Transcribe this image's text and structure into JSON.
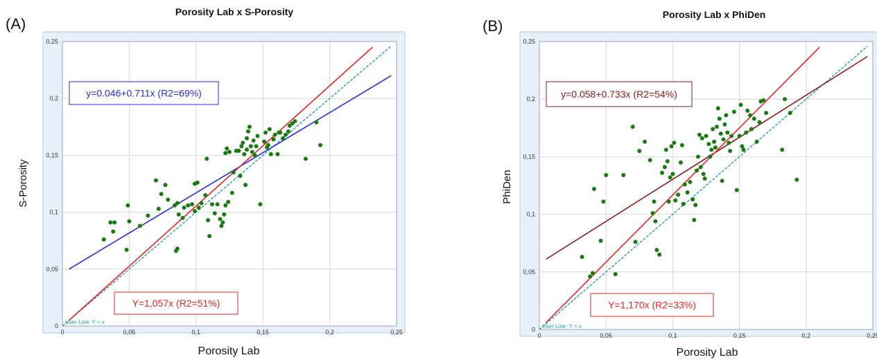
{
  "chart_data": [
    {
      "type": "scatter",
      "panel_label": "(A)",
      "title": "Porosity Lab  x S-Porosity",
      "xlabel": "Porosity Lab",
      "ylabel": "S-Porosity",
      "xlim": [
        0,
        0.25
      ],
      "ylim": [
        0,
        0.25
      ],
      "x_ticks": [
        "0",
        "0,05",
        "0,1",
        "0,15",
        "0,2",
        "0,25"
      ],
      "y_ticks": [
        "0",
        "0,05",
        "0,1",
        "0,15",
        "0,2",
        "0,25"
      ],
      "grid": true,
      "colors": {
        "points": "#1a7a12",
        "fit": "#2a2ae0",
        "origin_fit": "#ee2222",
        "user_line": "#1a9a9a",
        "background": "#e7f0f8"
      },
      "points": [
        [
          0.031,
          0.076
        ],
        [
          0.036,
          0.091
        ],
        [
          0.038,
          0.083
        ],
        [
          0.039,
          0.091
        ],
        [
          0.048,
          0.067
        ],
        [
          0.049,
          0.106
        ],
        [
          0.05,
          0.092
        ],
        [
          0.058,
          0.088
        ],
        [
          0.064,
          0.097
        ],
        [
          0.07,
          0.128
        ],
        [
          0.072,
          0.103
        ],
        [
          0.074,
          0.116
        ],
        [
          0.077,
          0.124
        ],
        [
          0.079,
          0.111
        ],
        [
          0.084,
          0.106
        ],
        [
          0.085,
          0.066
        ],
        [
          0.086,
          0.068
        ],
        [
          0.086,
          0.108
        ],
        [
          0.087,
          0.098
        ],
        [
          0.09,
          0.095
        ],
        [
          0.091,
          0.104
        ],
        [
          0.094,
          0.106
        ],
        [
          0.097,
          0.107
        ],
        [
          0.099,
          0.101
        ],
        [
          0.099,
          0.125
        ],
        [
          0.101,
          0.126
        ],
        [
          0.102,
          0.104
        ],
        [
          0.104,
          0.108
        ],
        [
          0.107,
          0.115
        ],
        [
          0.108,
          0.147
        ],
        [
          0.109,
          0.093
        ],
        [
          0.11,
          0.079
        ],
        [
          0.112,
          0.107
        ],
        [
          0.114,
          0.099
        ],
        [
          0.116,
          0.107
        ],
        [
          0.118,
          0.094
        ],
        [
          0.119,
          0.088
        ],
        [
          0.12,
          0.091
        ],
        [
          0.121,
          0.098
        ],
        [
          0.122,
          0.106
        ],
        [
          0.122,
          0.152
        ],
        [
          0.123,
          0.156
        ],
        [
          0.124,
          0.109
        ],
        [
          0.125,
          0.153
        ],
        [
          0.127,
          0.117
        ],
        [
          0.128,
          0.135
        ],
        [
          0.13,
          0.154
        ],
        [
          0.132,
          0.154
        ],
        [
          0.133,
          0.132
        ],
        [
          0.134,
          0.158
        ],
        [
          0.135,
          0.161
        ],
        [
          0.136,
          0.151
        ],
        [
          0.137,
          0.124
        ],
        [
          0.138,
          0.155
        ],
        [
          0.138,
          0.165
        ],
        [
          0.139,
          0.171
        ],
        [
          0.14,
          0.175
        ],
        [
          0.141,
          0.158
        ],
        [
          0.142,
          0.153
        ],
        [
          0.143,
          0.163
        ],
        [
          0.144,
          0.15
        ],
        [
          0.145,
          0.158
        ],
        [
          0.146,
          0.167
        ],
        [
          0.148,
          0.107
        ],
        [
          0.151,
          0.162
        ],
        [
          0.152,
          0.17
        ],
        [
          0.153,
          0.157
        ],
        [
          0.154,
          0.159
        ],
        [
          0.155,
          0.173
        ],
        [
          0.156,
          0.151
        ],
        [
          0.158,
          0.164
        ],
        [
          0.159,
          0.168
        ],
        [
          0.161,
          0.151
        ],
        [
          0.162,
          0.17
        ],
        [
          0.163,
          0.17
        ],
        [
          0.165,
          0.165
        ],
        [
          0.167,
          0.168
        ],
        [
          0.169,
          0.171
        ],
        [
          0.17,
          0.176
        ],
        [
          0.172,
          0.178
        ],
        [
          0.174,
          0.18
        ],
        [
          0.182,
          0.147
        ],
        [
          0.19,
          0.179
        ],
        [
          0.193,
          0.159
        ]
      ],
      "fit_line": {
        "label": "y=0.046+0.711x  (R2=69%)",
        "x_range": [
          0.005,
          0.246
        ],
        "y_range": [
          0.05,
          0.22
        ]
      },
      "origin_fit_line": {
        "label": "Y=1,057x  (R2=51%)",
        "x_range": [
          0.005,
          0.232
        ],
        "y_range": [
          0.005,
          0.245
        ]
      },
      "user_line": {
        "label": "User Line: Y = x",
        "x_range": [
          0,
          0.246
        ],
        "y_range": [
          0,
          0.246
        ]
      }
    },
    {
      "type": "scatter",
      "panel_label": "(B)",
      "title": "Porosity Lab  x PhiDen",
      "xlabel": "Porosity Lab",
      "ylabel": "PhiDen",
      "xlim": [
        0,
        0.25
      ],
      "ylim": [
        0,
        0.25
      ],
      "x_ticks": [
        "0",
        "0,05",
        "0,1",
        "0,15",
        "0,2",
        "0,25"
      ],
      "y_ticks": [
        "0",
        "0,05",
        "0,1",
        "0,15",
        "0,2",
        "0,25"
      ],
      "grid": true,
      "colors": {
        "points": "#1a7a12",
        "fit": "#8b1a1a",
        "origin_fit": "#ee2222",
        "user_line": "#1a9a9a",
        "background": "#e7f0f8"
      },
      "points": [
        [
          0.032,
          0.063
        ],
        [
          0.038,
          0.046
        ],
        [
          0.04,
          0.049
        ],
        [
          0.041,
          0.122
        ],
        [
          0.046,
          0.077
        ],
        [
          0.048,
          0.111
        ],
        [
          0.05,
          0.134
        ],
        [
          0.057,
          0.048
        ],
        [
          0.063,
          0.134
        ],
        [
          0.07,
          0.176
        ],
        [
          0.072,
          0.076
        ],
        [
          0.075,
          0.155
        ],
        [
          0.079,
          0.163
        ],
        [
          0.083,
          0.147
        ],
        [
          0.085,
          0.101
        ],
        [
          0.086,
          0.111
        ],
        [
          0.087,
          0.094
        ],
        [
          0.088,
          0.069
        ],
        [
          0.09,
          0.065
        ],
        [
          0.092,
          0.136
        ],
        [
          0.094,
          0.141
        ],
        [
          0.095,
          0.156
        ],
        [
          0.096,
          0.146
        ],
        [
          0.097,
          0.111
        ],
        [
          0.098,
          0.132
        ],
        [
          0.099,
          0.159
        ],
        [
          0.1,
          0.135
        ],
        [
          0.101,
          0.162
        ],
        [
          0.102,
          0.112
        ],
        [
          0.104,
          0.117
        ],
        [
          0.106,
          0.145
        ],
        [
          0.107,
          0.16
        ],
        [
          0.108,
          0.109
        ],
        [
          0.109,
          0.126
        ],
        [
          0.111,
          0.119
        ],
        [
          0.113,
          0.128
        ],
        [
          0.115,
          0.113
        ],
        [
          0.116,
          0.095
        ],
        [
          0.117,
          0.108
        ],
        [
          0.118,
          0.138
        ],
        [
          0.119,
          0.15
        ],
        [
          0.12,
          0.169
        ],
        [
          0.121,
          0.141
        ],
        [
          0.122,
          0.166
        ],
        [
          0.123,
          0.135
        ],
        [
          0.124,
          0.131
        ],
        [
          0.125,
          0.168
        ],
        [
          0.127,
          0.161
        ],
        [
          0.128,
          0.15
        ],
        [
          0.129,
          0.156
        ],
        [
          0.13,
          0.174
        ],
        [
          0.131,
          0.163
        ],
        [
          0.132,
          0.158
        ],
        [
          0.133,
          0.176
        ],
        [
          0.134,
          0.192
        ],
        [
          0.135,
          0.183
        ],
        [
          0.136,
          0.17
        ],
        [
          0.137,
          0.129
        ],
        [
          0.138,
          0.165
        ],
        [
          0.139,
          0.178
        ],
        [
          0.14,
          0.186
        ],
        [
          0.141,
          0.171
        ],
        [
          0.142,
          0.162
        ],
        [
          0.143,
          0.155
        ],
        [
          0.144,
          0.168
        ],
        [
          0.146,
          0.189
        ],
        [
          0.148,
          0.121
        ],
        [
          0.15,
          0.168
        ],
        [
          0.151,
          0.195
        ],
        [
          0.152,
          0.159
        ],
        [
          0.153,
          0.156
        ],
        [
          0.155,
          0.171
        ],
        [
          0.156,
          0.19
        ],
        [
          0.158,
          0.186
        ],
        [
          0.159,
          0.174
        ],
        [
          0.161,
          0.183
        ],
        [
          0.163,
          0.163
        ],
        [
          0.165,
          0.18
        ],
        [
          0.166,
          0.198
        ],
        [
          0.168,
          0.199
        ],
        [
          0.17,
          0.188
        ],
        [
          0.182,
          0.156
        ],
        [
          0.184,
          0.2
        ],
        [
          0.188,
          0.188
        ],
        [
          0.193,
          0.13
        ]
      ],
      "fit_line": {
        "label": "y=0.058+0.733x  (R2=54%)",
        "x_range": [
          0.005,
          0.246
        ],
        "y_range": [
          0.061,
          0.237
        ]
      },
      "origin_fit_line": {
        "label": "Y=1,170x  (R2=33%)",
        "x_range": [
          0.005,
          0.21
        ],
        "y_range": [
          0.006,
          0.245
        ]
      },
      "user_line": {
        "label": "User Line: Y = x",
        "x_range": [
          0,
          0.246
        ],
        "y_range": [
          0,
          0.246
        ]
      }
    }
  ]
}
